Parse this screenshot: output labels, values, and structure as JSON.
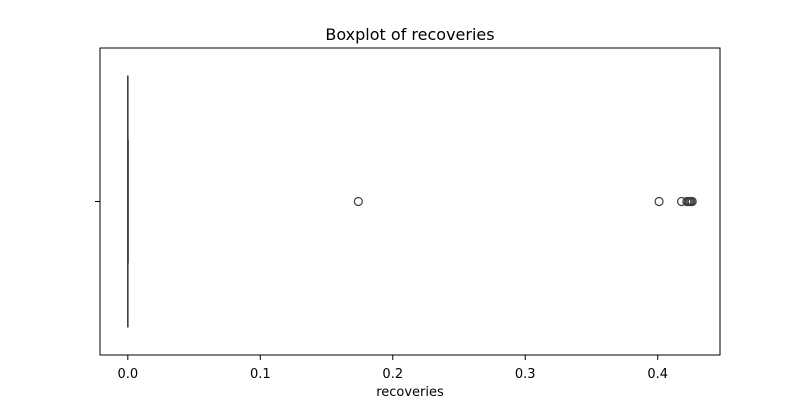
{
  "chart_data": {
    "type": "boxplot",
    "title": "Boxplot of recoveries",
    "xlabel": "recoveries",
    "ylabel": "",
    "orientation": "horizontal",
    "xlim": [
      -0.021,
      0.447
    ],
    "x_ticks": [
      0.0,
      0.1,
      0.2,
      0.3,
      0.4
    ],
    "x_tick_labels": [
      "0.0",
      "0.1",
      "0.2",
      "0.3",
      "0.4"
    ],
    "grid": false,
    "legend": "none",
    "box": {
      "min": 0.0,
      "q1": 0.0,
      "median": 0.0,
      "q3": 0.0,
      "max": 0.0
    },
    "outliers": [
      0.174,
      0.401,
      0.418,
      0.422,
      0.423,
      0.424,
      0.425,
      0.426
    ],
    "colors": {
      "box_edge": "#3f3f3f",
      "whisker": "#3f3f3f",
      "outlier_edge": "#3f3f3f",
      "axes": "#000000",
      "background": "#ffffff"
    }
  }
}
